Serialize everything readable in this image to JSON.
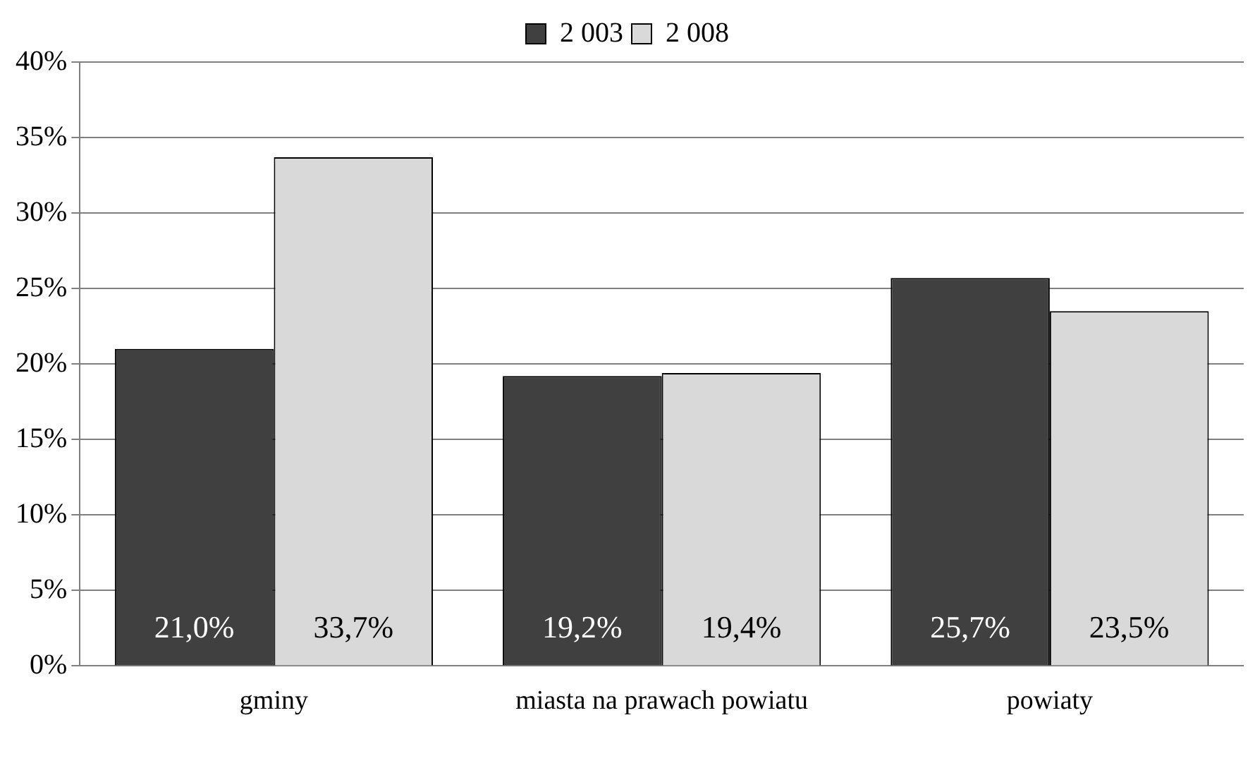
{
  "chart_data": {
    "type": "bar",
    "categories": [
      "gminy",
      "miasta na prawach powiatu",
      "powiaty"
    ],
    "series": [
      {
        "name": "2 003",
        "color": "#404040",
        "values": [
          21.0,
          19.2,
          25.7
        ],
        "value_labels": [
          "21,0%",
          "19,2%",
          "25,7%"
        ]
      },
      {
        "name": "2 008",
        "color": "#d9d9d9",
        "values": [
          33.7,
          19.4,
          23.5
        ],
        "value_labels": [
          "33,7%",
          "19,4%",
          "23,5%"
        ]
      }
    ],
    "ylim": [
      0,
      40
    ],
    "yticks": [
      {
        "value": 0,
        "label": "0%"
      },
      {
        "value": 5,
        "label": "5%"
      },
      {
        "value": 10,
        "label": "10%"
      },
      {
        "value": 15,
        "label": "15%"
      },
      {
        "value": 20,
        "label": "20%"
      },
      {
        "value": 25,
        "label": "25%"
      },
      {
        "value": 30,
        "label": "30%"
      },
      {
        "value": 35,
        "label": "35%"
      },
      {
        "value": 40,
        "label": "40%"
      }
    ],
    "grid": "y",
    "legend": "top"
  }
}
